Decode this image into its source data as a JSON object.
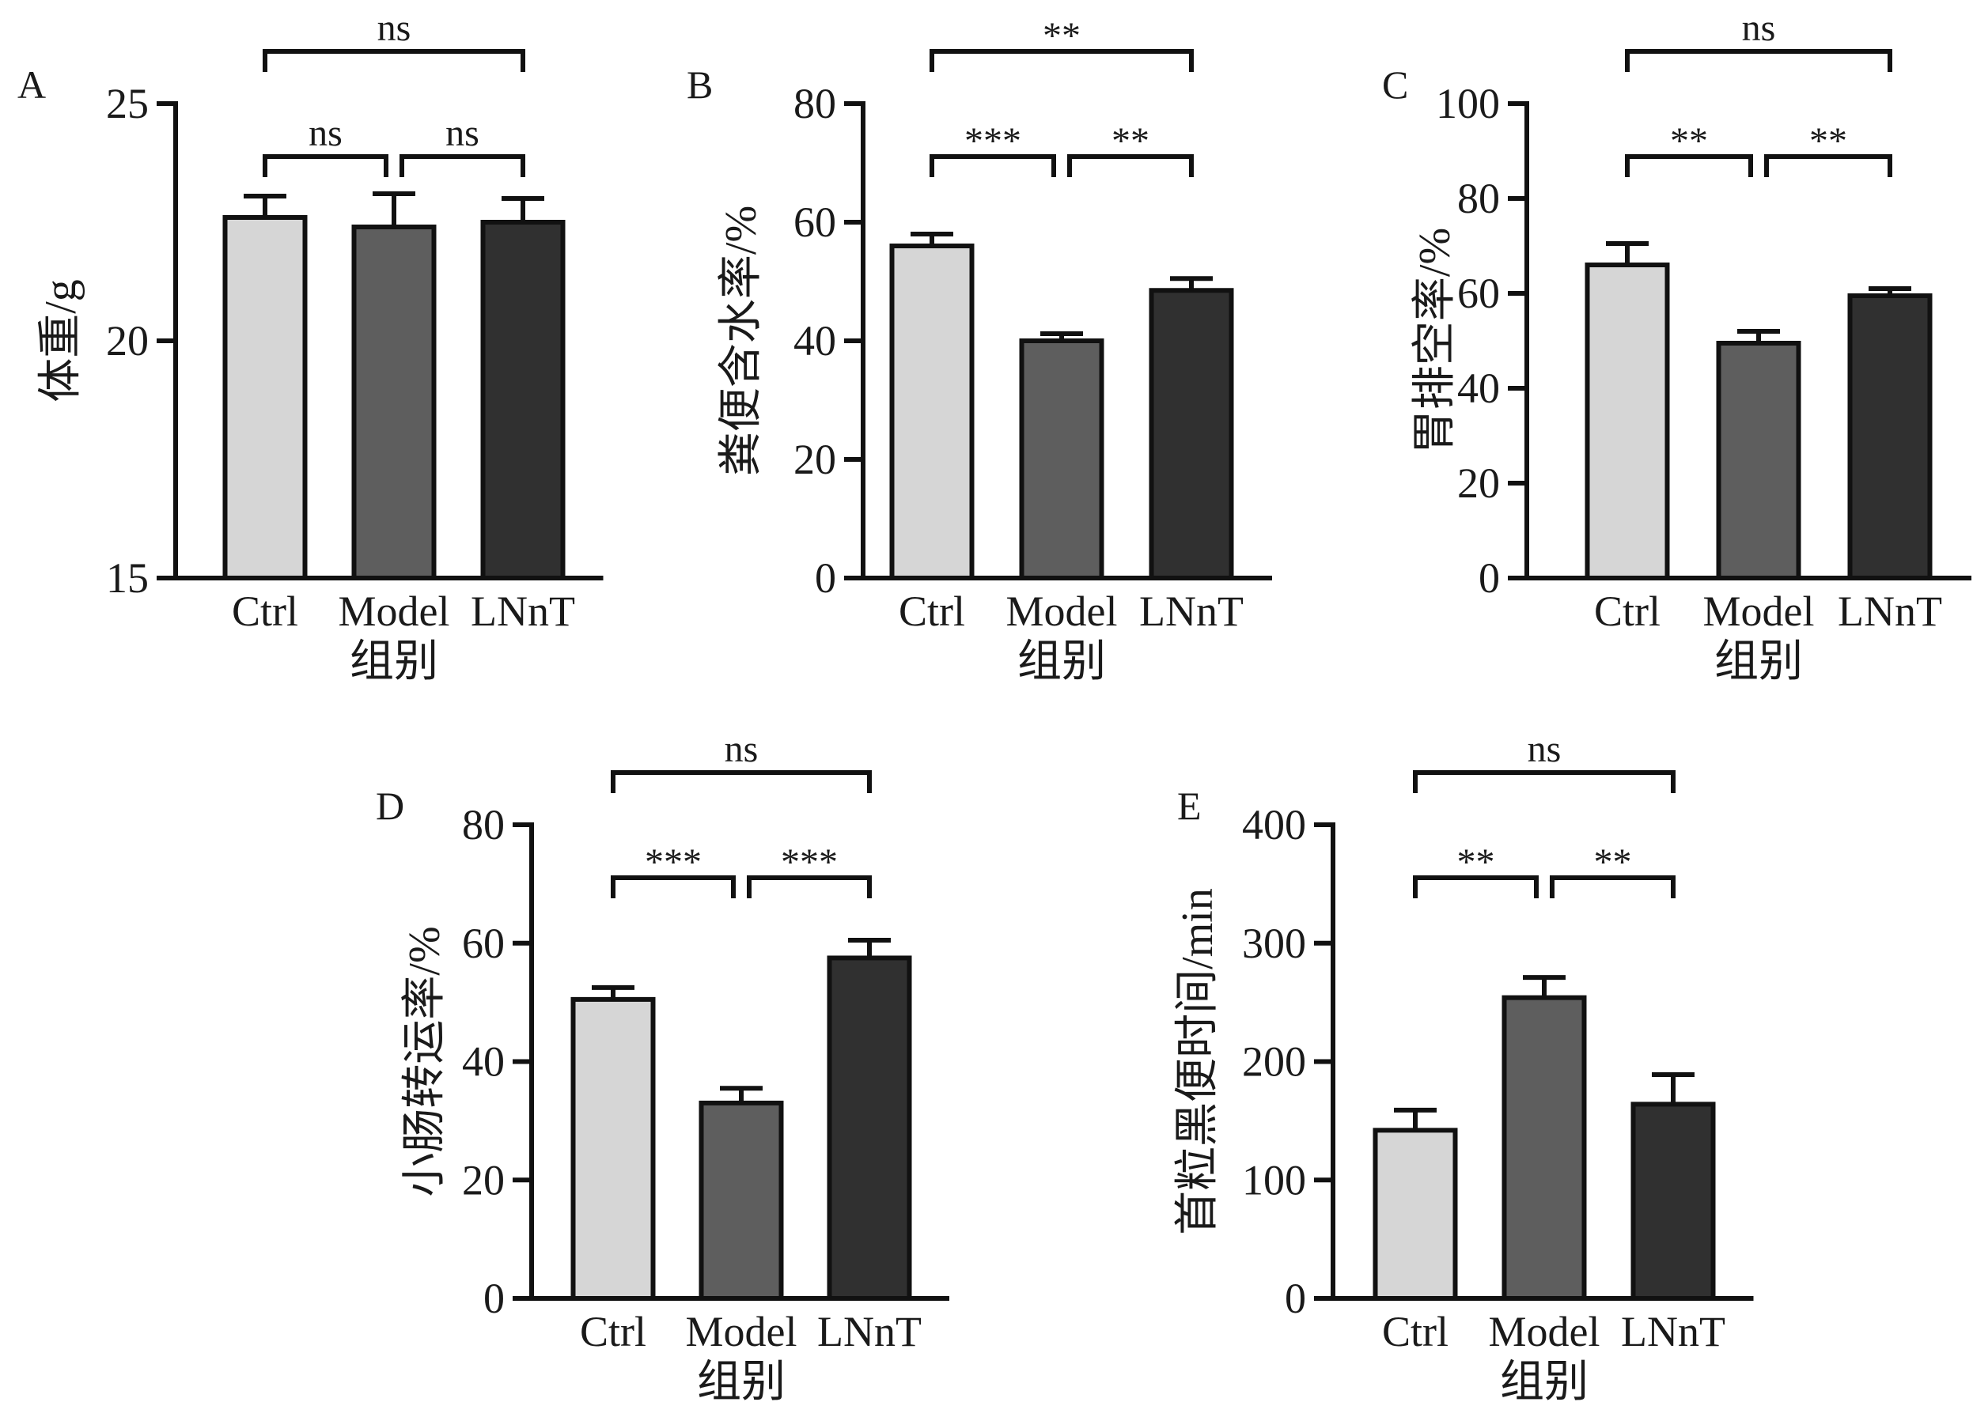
{
  "chart_data": [
    {
      "type": "bar",
      "panel": "A",
      "categories": [
        "Ctrl",
        "Model",
        "LNnT"
      ],
      "values": [
        22.6,
        22.4,
        22.5
      ],
      "errors": [
        0.45,
        0.7,
        0.5
      ],
      "colors": [
        "#d6d6d6",
        "#5e5e5e",
        "#303030"
      ],
      "ylabel": "体重/g",
      "xlabel": "组别",
      "ylim": [
        15,
        25
      ],
      "yticks": [
        15,
        20,
        25
      ],
      "comparisons": [
        {
          "from": 0,
          "to": 1,
          "label": "ns"
        },
        {
          "from": 1,
          "to": 2,
          "label": "ns"
        },
        {
          "from": 0,
          "to": 2,
          "label": "ns"
        }
      ]
    },
    {
      "type": "bar",
      "panel": "B",
      "categories": [
        "Ctrl",
        "Model",
        "LNnT"
      ],
      "values": [
        56,
        40,
        48.5
      ],
      "errors": [
        2,
        1.2,
        2
      ],
      "colors": [
        "#d6d6d6",
        "#5e5e5e",
        "#303030"
      ],
      "ylabel": "粪便含水率/%",
      "xlabel": "组别",
      "ylim": [
        0,
        80
      ],
      "yticks": [
        0,
        20,
        40,
        60,
        80
      ],
      "comparisons": [
        {
          "from": 0,
          "to": 1,
          "label": "***"
        },
        {
          "from": 1,
          "to": 2,
          "label": "**"
        },
        {
          "from": 0,
          "to": 2,
          "label": "**"
        }
      ]
    },
    {
      "type": "bar",
      "panel": "C",
      "categories": [
        "Ctrl",
        "Model",
        "LNnT"
      ],
      "values": [
        66,
        49.5,
        59.5
      ],
      "errors": [
        4.5,
        2.5,
        1.5
      ],
      "colors": [
        "#d6d6d6",
        "#5e5e5e",
        "#303030"
      ],
      "ylabel": "胃排空率/%",
      "xlabel": "组别",
      "ylim": [
        0,
        100
      ],
      "yticks": [
        0,
        20,
        40,
        60,
        80,
        100
      ],
      "comparisons": [
        {
          "from": 0,
          "to": 1,
          "label": "**"
        },
        {
          "from": 1,
          "to": 2,
          "label": "**"
        },
        {
          "from": 0,
          "to": 2,
          "label": "ns"
        }
      ]
    },
    {
      "type": "bar",
      "panel": "D",
      "categories": [
        "Ctrl",
        "Model",
        "LNnT"
      ],
      "values": [
        50.5,
        33,
        57.5
      ],
      "errors": [
        2,
        2.5,
        3
      ],
      "colors": [
        "#d6d6d6",
        "#5e5e5e",
        "#303030"
      ],
      "ylabel": "小肠转运率/%",
      "xlabel": "组别",
      "ylim": [
        0,
        80
      ],
      "yticks": [
        0,
        20,
        40,
        60,
        80
      ],
      "comparisons": [
        {
          "from": 0,
          "to": 1,
          "label": "***"
        },
        {
          "from": 1,
          "to": 2,
          "label": "***"
        },
        {
          "from": 0,
          "to": 2,
          "label": "ns"
        }
      ]
    },
    {
      "type": "bar",
      "panel": "E",
      "categories": [
        "Ctrl",
        "Model",
        "LNnT"
      ],
      "values": [
        142,
        254,
        164
      ],
      "errors": [
        17,
        17,
        25
      ],
      "colors": [
        "#d6d6d6",
        "#5e5e5e",
        "#303030"
      ],
      "ylabel": "首粒黑便时间/min",
      "xlabel": "组别",
      "ylim": [
        0,
        400
      ],
      "yticks": [
        0,
        100,
        200,
        300,
        400
      ],
      "comparisons": [
        {
          "from": 0,
          "to": 1,
          "label": "**"
        },
        {
          "from": 1,
          "to": 2,
          "label": "**"
        },
        {
          "from": 0,
          "to": 2,
          "label": "ns"
        }
      ]
    }
  ]
}
